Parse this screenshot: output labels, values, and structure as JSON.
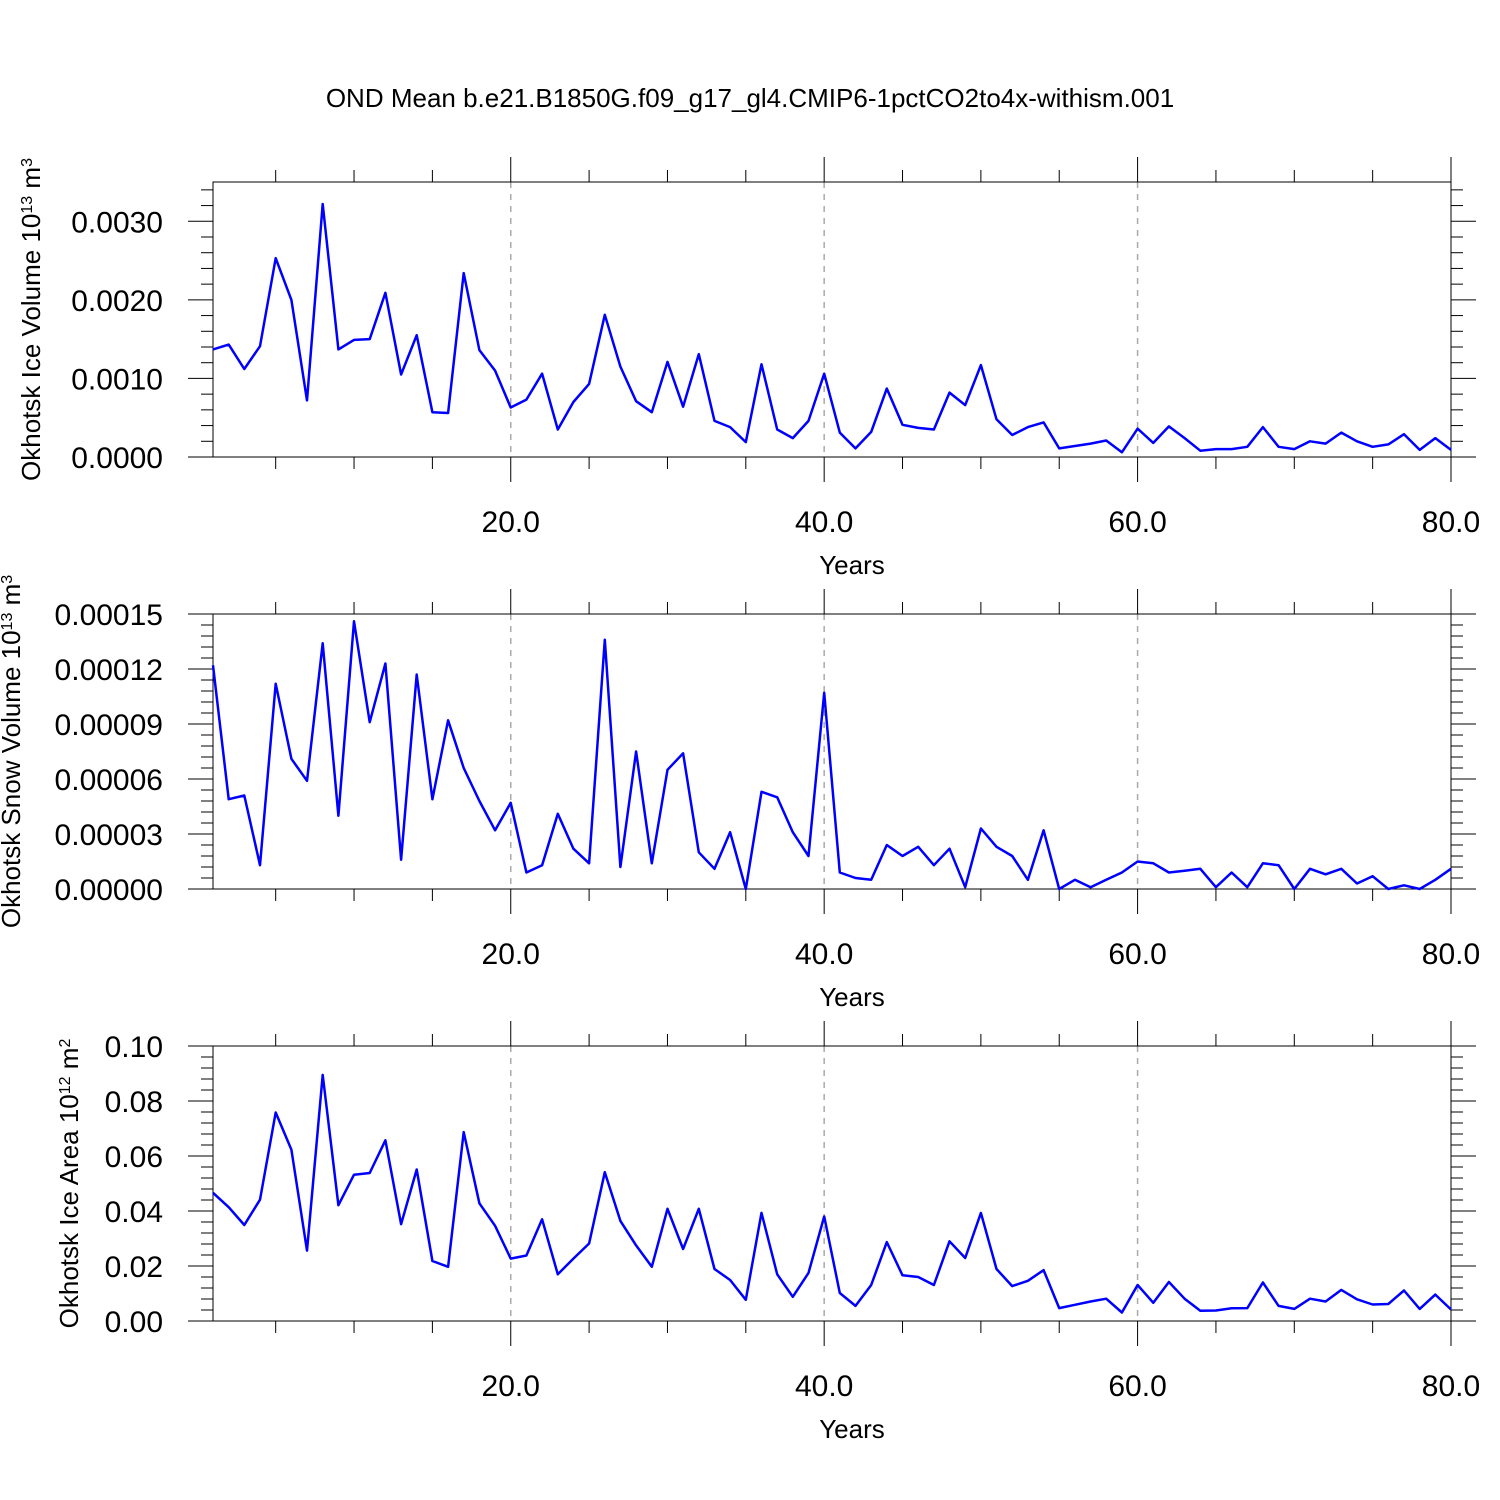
{
  "title": "OND Mean b.e21.B1850G.f09_g17_gl4.CMIP6-1pctCO2to4x-withism.001",
  "colors": {
    "series": "#0000ff",
    "axis": "#000000",
    "gridline": "#aaaaaa"
  },
  "chart_data": [
    {
      "type": "line",
      "ylabel": {
        "prefix": "Okhotsk Ice Volume 10",
        "exponent": "13",
        "unit": " m",
        "unit_exponent": "3"
      },
      "xlabel": "Years",
      "xlim": [
        1,
        80
      ],
      "ylim": [
        0,
        0.0035
      ],
      "xticks": [
        20,
        40,
        60,
        80
      ],
      "xtick_labels": [
        "20.0",
        "40.0",
        "60.0",
        "80.0"
      ],
      "yticks": [
        0,
        0.001,
        0.002,
        0.003
      ],
      "ytick_labels": [
        "0.0000",
        "0.0010",
        "0.0020",
        "0.0030"
      ],
      "grid": "dashed vertical lines at 20, 40, 60",
      "x": [
        1,
        2,
        3,
        4,
        5,
        6,
        7,
        8,
        9,
        10,
        11,
        12,
        13,
        14,
        15,
        16,
        17,
        18,
        19,
        20,
        21,
        22,
        23,
        24,
        25,
        26,
        27,
        28,
        29,
        30,
        31,
        32,
        33,
        34,
        35,
        36,
        37,
        38,
        39,
        40,
        41,
        42,
        43,
        44,
        45,
        46,
        47,
        48,
        49,
        50,
        51,
        52,
        53,
        54,
        55,
        56,
        57,
        58,
        59,
        60,
        61,
        62,
        63,
        64,
        65,
        66,
        67,
        68,
        69,
        70,
        71,
        72,
        73,
        74,
        75,
        76,
        77,
        78,
        79,
        80
      ],
      "series": [
        {
          "values": [
            0.00137,
            0.00143,
            0.00112,
            0.00141,
            0.00253,
            0.002,
            0.00072,
            0.00322,
            0.00137,
            0.00149,
            0.0015,
            0.00209,
            0.00105,
            0.00155,
            0.00057,
            0.00056,
            0.00234,
            0.00136,
            0.0011,
            0.00063,
            0.00073,
            0.00106,
            0.00035,
            0.0007,
            0.00093,
            0.00181,
            0.00115,
            0.00071,
            0.00057,
            0.00121,
            0.00064,
            0.00131,
            0.00046,
            0.00038,
            0.00019,
            0.00118,
            0.00035,
            0.00024,
            0.00046,
            0.00106,
            0.00031,
            0.00011,
            0.00032,
            0.00087,
            0.00041,
            0.00037,
            0.00035,
            0.00082,
            0.00066,
            0.00117,
            0.00048,
            0.00028,
            0.00038,
            0.00044,
            0.00011,
            0.00014,
            0.00017,
            0.00021,
            6e-05,
            0.00036,
            0.00018,
            0.00039,
            0.00024,
            8e-05,
            0.0001,
            0.0001,
            0.00013,
            0.00038,
            0.00013,
            0.0001,
            0.0002,
            0.00017,
            0.00031,
            0.0002,
            0.00013,
            0.00016,
            0.00029,
            9e-05,
            0.00024,
            9e-05
          ]
        }
      ]
    },
    {
      "type": "line",
      "ylabel": {
        "prefix": "Okhotsk Snow Volume 10",
        "exponent": "13",
        "unit": " m",
        "unit_exponent": "3"
      },
      "xlabel": "Years",
      "xlim": [
        1,
        80
      ],
      "ylim": [
        0,
        0.00015
      ],
      "xticks": [
        20,
        40,
        60,
        80
      ],
      "xtick_labels": [
        "20.0",
        "40.0",
        "60.0",
        "80.0"
      ],
      "yticks": [
        0,
        3e-05,
        6e-05,
        9e-05,
        0.00012,
        0.00015
      ],
      "ytick_labels": [
        "0.00000",
        "0.00003",
        "0.00006",
        "0.00009",
        "0.00012",
        "0.00015"
      ],
      "grid": "dashed vertical lines at 20, 40, 60",
      "x": [
        1,
        2,
        3,
        4,
        5,
        6,
        7,
        8,
        9,
        10,
        11,
        12,
        13,
        14,
        15,
        16,
        17,
        18,
        19,
        20,
        21,
        22,
        23,
        24,
        25,
        26,
        27,
        28,
        29,
        30,
        31,
        32,
        33,
        34,
        35,
        36,
        37,
        38,
        39,
        40,
        41,
        42,
        43,
        44,
        45,
        46,
        47,
        48,
        49,
        50,
        51,
        52,
        53,
        54,
        55,
        56,
        57,
        58,
        59,
        60,
        61,
        62,
        63,
        64,
        65,
        66,
        67,
        68,
        69,
        70,
        71,
        72,
        73,
        74,
        75,
        76,
        77,
        78,
        79,
        80
      ],
      "series": [
        {
          "values": [
            0.000122,
            4.9e-05,
            5.1e-05,
            1.3e-05,
            0.000112,
            7.1e-05,
            5.9e-05,
            0.000134,
            4e-05,
            0.000146,
            9.1e-05,
            0.000123,
            1.6e-05,
            0.000117,
            4.9e-05,
            9.2e-05,
            6.6e-05,
            4.8e-05,
            3.2e-05,
            4.7e-05,
            9e-06,
            1.3e-05,
            4.1e-05,
            2.2e-05,
            1.4e-05,
            0.000136,
            1.2e-05,
            7.5e-05,
            1.4e-05,
            6.5e-05,
            7.4e-05,
            2e-05,
            1.1e-05,
            3.1e-05,
            0.0,
            5.3e-05,
            5e-05,
            3.1e-05,
            1.8e-05,
            0.000107,
            9e-06,
            6e-06,
            5e-06,
            2.4e-05,
            1.8e-05,
            2.3e-05,
            1.3e-05,
            2.2e-05,
            1e-06,
            3.3e-05,
            2.3e-05,
            1.8e-05,
            5e-06,
            3.2e-05,
            0.0,
            5e-06,
            1e-06,
            5e-06,
            9e-06,
            1.5e-05,
            1.4e-05,
            9e-06,
            1e-05,
            1.1e-05,
            1e-06,
            9e-06,
            1e-06,
            1.4e-05,
            1.3e-05,
            0.0,
            1.1e-05,
            8e-06,
            1.1e-05,
            3e-06,
            7e-06,
            0.0,
            2e-06,
            0.0,
            5e-06,
            1.1e-05
          ]
        }
      ]
    },
    {
      "type": "line",
      "ylabel": {
        "prefix": "Okhotsk Ice Area 10",
        "exponent": "12",
        "unit": " m",
        "unit_exponent": "2"
      },
      "xlabel": "Years",
      "xlim": [
        1,
        80
      ],
      "ylim": [
        0,
        0.1
      ],
      "xticks": [
        20,
        40,
        60,
        80
      ],
      "xtick_labels": [
        "20.0",
        "40.0",
        "60.0",
        "80.0"
      ],
      "yticks": [
        0,
        0.02,
        0.04,
        0.06,
        0.08,
        0.1
      ],
      "ytick_labels": [
        "0.00",
        "0.02",
        "0.04",
        "0.06",
        "0.08",
        "0.10"
      ],
      "grid": "dashed vertical lines at 20, 40, 60",
      "x": [
        1,
        2,
        3,
        4,
        5,
        6,
        7,
        8,
        9,
        10,
        11,
        12,
        13,
        14,
        15,
        16,
        17,
        18,
        19,
        20,
        21,
        22,
        23,
        24,
        25,
        26,
        27,
        28,
        29,
        30,
        31,
        32,
        33,
        34,
        35,
        36,
        37,
        38,
        39,
        40,
        41,
        42,
        43,
        44,
        45,
        46,
        47,
        48,
        49,
        50,
        51,
        52,
        53,
        54,
        55,
        56,
        57,
        58,
        59,
        60,
        61,
        62,
        63,
        64,
        65,
        66,
        67,
        68,
        69,
        70,
        71,
        72,
        73,
        74,
        75,
        76,
        77,
        78,
        79,
        80
      ],
      "series": [
        {
          "values": [
            0.0466,
            0.0414,
            0.0349,
            0.0441,
            0.0758,
            0.0623,
            0.0256,
            0.0895,
            0.0421,
            0.0532,
            0.0538,
            0.0657,
            0.0352,
            0.0551,
            0.0218,
            0.0197,
            0.0687,
            0.0428,
            0.0346,
            0.0227,
            0.0238,
            0.037,
            0.017,
            0.0227,
            0.0282,
            0.0541,
            0.0364,
            0.0275,
            0.0197,
            0.0408,
            0.0262,
            0.0408,
            0.0189,
            0.0149,
            0.0077,
            0.0393,
            0.017,
            0.0088,
            0.0175,
            0.038,
            0.0102,
            0.0055,
            0.0131,
            0.0287,
            0.0166,
            0.016,
            0.0131,
            0.029,
            0.0229,
            0.0393,
            0.0189,
            0.0127,
            0.0146,
            0.0185,
            0.0047,
            0.0059,
            0.0071,
            0.0081,
            0.0031,
            0.0131,
            0.0066,
            0.0142,
            0.0081,
            0.0037,
            0.0038,
            0.0046,
            0.0047,
            0.014,
            0.0055,
            0.0044,
            0.0081,
            0.0071,
            0.0113,
            0.0079,
            0.006,
            0.0062,
            0.0111,
            0.0044,
            0.0096,
            0.0042
          ]
        }
      ]
    }
  ]
}
